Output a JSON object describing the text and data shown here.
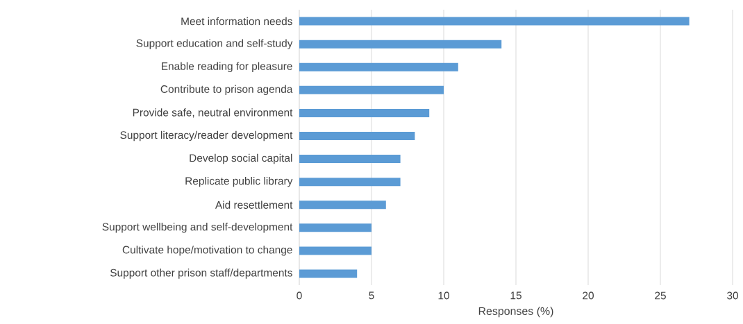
{
  "chart_data": {
    "type": "bar",
    "orientation": "horizontal",
    "xlabel": "Responses (%)",
    "categories": [
      "Meet information needs",
      "Support education and self-study",
      "Enable reading for pleasure",
      "Contribute to prison agenda",
      "Provide safe, neutral environment",
      "Support literacy/reader development",
      "Develop social capital",
      "Replicate public library",
      "Aid resettlement",
      "Support wellbeing and self-development",
      "Cultivate hope/motivation to change",
      "Support other prison staff/departments"
    ],
    "values": [
      27,
      14,
      11,
      10,
      9,
      8,
      7,
      7,
      6,
      5,
      5,
      4
    ],
    "color": "#5b9bd5",
    "xlim": [
      0,
      30
    ],
    "xticks": [
      0,
      5,
      10,
      15,
      20,
      25,
      30
    ],
    "grid": "x"
  }
}
